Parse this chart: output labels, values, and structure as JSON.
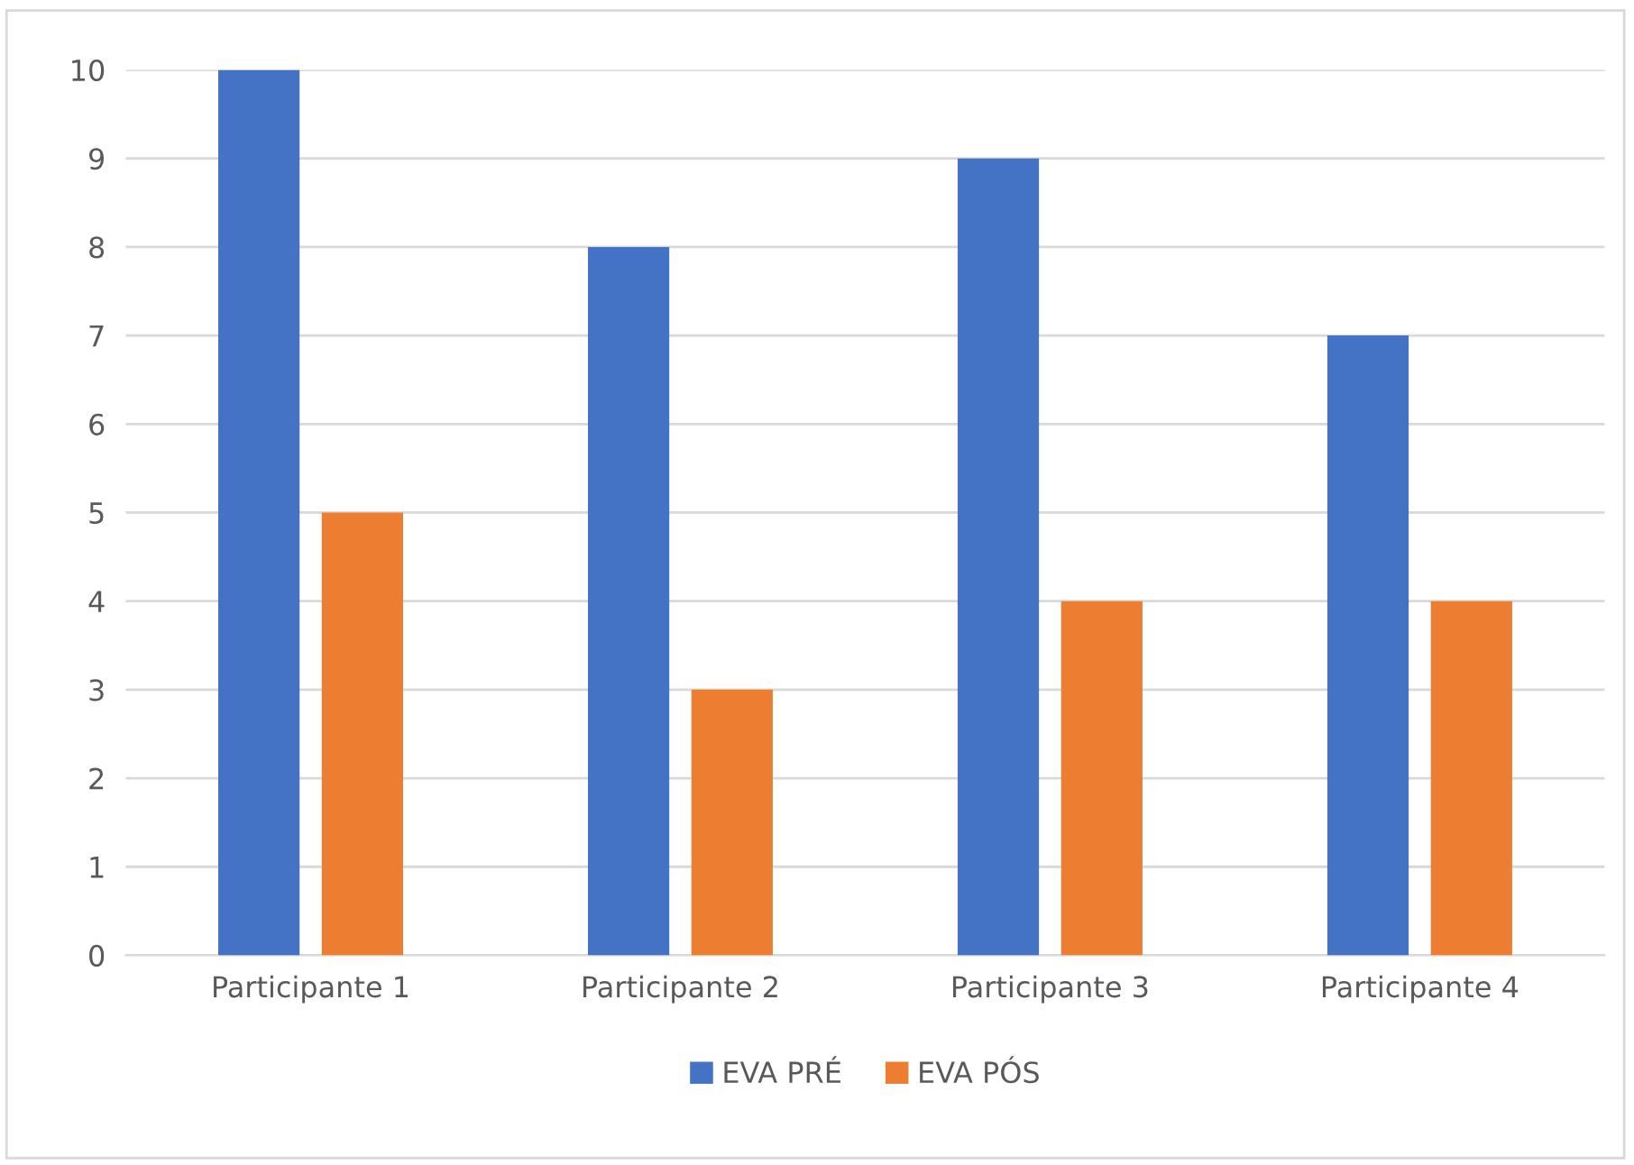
{
  "chart_data": {
    "type": "bar",
    "categories": [
      "Participante 1",
      "Participante 2",
      "Participante 3",
      "Participante 4"
    ],
    "series": [
      {
        "name": "EVA PRÉ",
        "color": "#4472c4",
        "values": [
          10,
          8,
          9,
          7
        ]
      },
      {
        "name": "EVA PÓS",
        "color": "#ed7d31",
        "values": [
          5,
          3,
          4,
          4
        ]
      }
    ],
    "ylim": [
      0,
      10
    ],
    "yticks": [
      0,
      1,
      2,
      3,
      4,
      5,
      6,
      7,
      8,
      9,
      10
    ],
    "grid": "y",
    "legend": "bottom"
  }
}
